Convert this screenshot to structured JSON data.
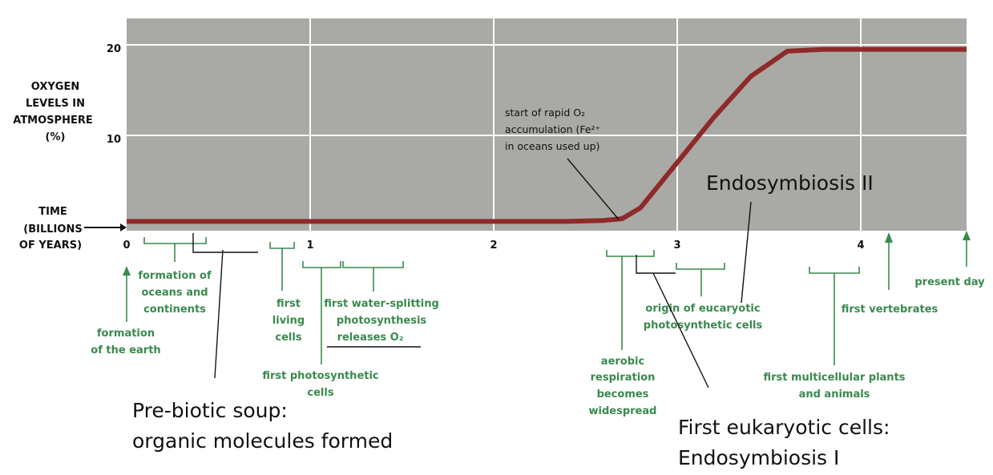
{
  "chart_data": {
    "type": "line",
    "ylabel": [
      "OXYGEN",
      "LEVELS IN",
      "ATMOSPHERE",
      "(%)"
    ],
    "xlabel": [
      "TIME",
      "(BILLIONS",
      "OF YEARS)"
    ],
    "xlim": [
      0,
      4.6
    ],
    "ylim": [
      0,
      22
    ],
    "x_ticks": [
      "0",
      "1",
      "2",
      "3",
      "4"
    ],
    "y_ticks": [
      "10",
      "20"
    ],
    "grid": true,
    "series": [
      {
        "x": [
          0,
          0.5,
          1.0,
          1.5,
          2.0,
          2.4,
          2.6,
          2.7,
          2.8,
          3.0,
          3.2,
          3.4,
          3.6,
          3.8,
          4.0,
          4.6
        ],
        "y": [
          0.5,
          0.5,
          0.5,
          0.5,
          0.5,
          0.5,
          0.6,
          0.8,
          2,
          7,
          12,
          16.5,
          19.3,
          19.5,
          19.5,
          19.5
        ],
        "color": "#8e2a2a"
      }
    ],
    "annotation": [
      "start of rapid O₂",
      "accumulation (Fe²⁺",
      "in oceans used up)"
    ]
  },
  "events": {
    "formation_earth": [
      "formation",
      "of the earth"
    ],
    "oceans": [
      "formation of",
      "oceans and",
      "continents"
    ],
    "living_cells": [
      "first",
      "living",
      "cells"
    ],
    "photosynthetic_cells": [
      "first photosynthetic",
      "cells"
    ],
    "water_splitting": [
      "first water-splitting",
      "photosynthesis",
      "releases O₂"
    ],
    "aerobic": [
      "aerobic",
      "respiration",
      "becomes",
      "widespread"
    ],
    "eucaryotic": [
      "origin of eucaryotic",
      "photosynthetic cells"
    ],
    "multicellular": [
      "first multicellular plants",
      "and animals"
    ],
    "vertebrates": "first vertebrates",
    "present_day": "present day"
  },
  "overlays": {
    "endosymbiosis_2": "Endosymbiosis II",
    "prebiotic": [
      "Pre-biotic soup:",
      "organic molecules formed"
    ],
    "eukaryotic": [
      "First eukaryotic cells:",
      "Endosymbiosis I"
    ]
  },
  "colors": {
    "plot_bg": "#a9aaa5",
    "grid": "#ffffff",
    "curve": "#8e2a2a",
    "green": "#3a8a4e"
  }
}
